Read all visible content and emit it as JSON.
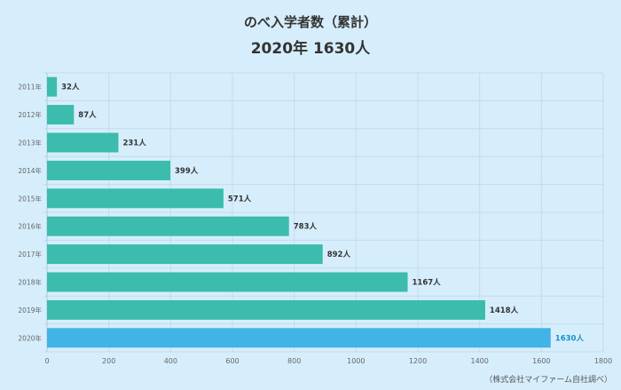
{
  "chart_data": {
    "type": "bar",
    "orientation": "horizontal",
    "title": "のべ入学者数（累計）",
    "subtitle": "2020年 1630人",
    "categories": [
      "2011年",
      "2012年",
      "2013年",
      "2014年",
      "2015年",
      "2016年",
      "2017年",
      "2018年",
      "2019年",
      "2020年"
    ],
    "values": [
      32,
      87,
      231,
      399,
      571,
      783,
      892,
      1167,
      1418,
      1630
    ],
    "value_suffix": "人",
    "xlim": [
      0,
      1800
    ],
    "xticks": [
      0,
      200,
      400,
      600,
      800,
      1000,
      1200,
      1400,
      1600,
      1800
    ],
    "grid": true,
    "source": "（株式会社マイファーム自社調べ）",
    "colors": {
      "bar": "#3bbcad",
      "highlight": "#42b3e6",
      "highlight_label": "#1a8fd0"
    }
  }
}
